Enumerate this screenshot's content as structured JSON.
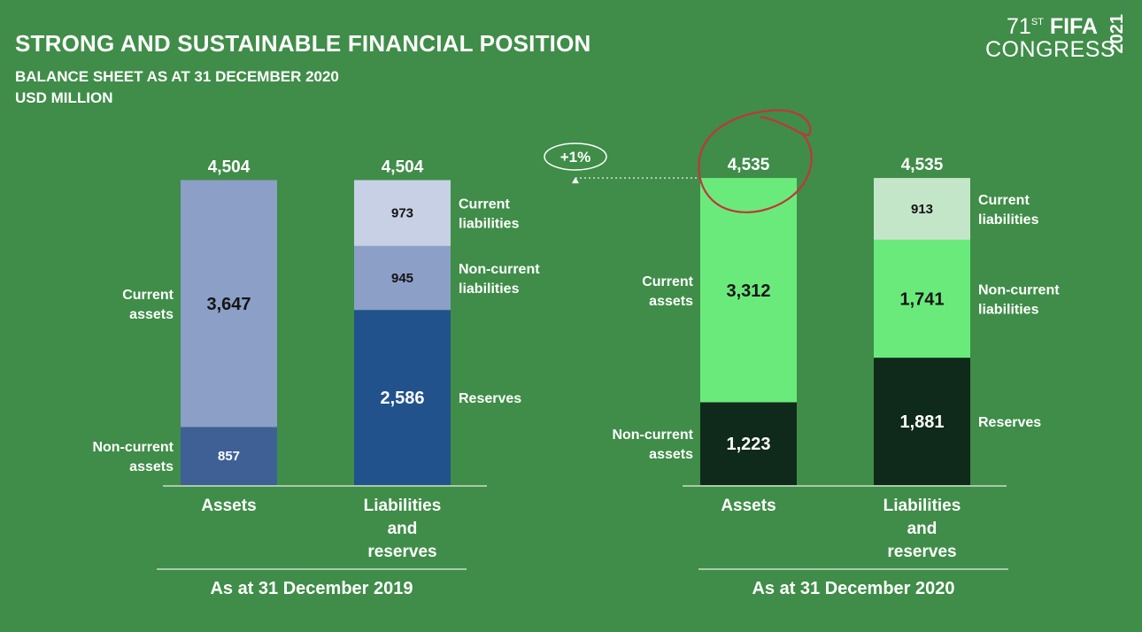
{
  "header": {
    "title": "STRONG AND SUSTAINABLE FINANCIAL POSITION",
    "subtitle": "BALANCE SHEET AS AT 31 DECEMBER 2020",
    "unit": "USD MILLION"
  },
  "logo": {
    "number": "71",
    "suffix": "ST",
    "brand": "FIFA",
    "word": "CONGRESS",
    "year": "2021"
  },
  "change_badge": "+1%",
  "colors": {
    "background": "#3f8d48",
    "c2019_current_assets": "#8c9fc6",
    "c2019_noncurrent_assets": "#3f6095",
    "c2019_current_liabilities": "#c7d0e4",
    "c2019_noncurrent_liabilities": "#8c9fc6",
    "c2019_reserves": "#21528c",
    "c2020_current_assets": "#6bea7c",
    "c2020_noncurrent_assets": "#0f2a1a",
    "c2020_current_liabilities": "#c3e6c8",
    "c2020_noncurrent_liabilities": "#6bea7c",
    "c2020_reserves": "#0f2a1a",
    "annotation": "#c0363a"
  },
  "chart_data": {
    "type": "bar",
    "stacked": true,
    "groups": [
      {
        "label": "As at 31 December 2019",
        "bars": [
          {
            "category": "Assets",
            "total": 4504,
            "total_label": "4,504",
            "segments": [
              {
                "name": "Non-current assets",
                "value": 857,
                "label": "857",
                "color_key": "c2019_noncurrent_assets",
                "dark_text": false,
                "label_side": "left"
              },
              {
                "name": "Current assets",
                "value": 3647,
                "label": "3,647",
                "color_key": "c2019_current_assets",
                "dark_text": true,
                "label_side": "left"
              }
            ]
          },
          {
            "category": "Liabilities and reserves",
            "total": 4504,
            "total_label": "4,504",
            "segments": [
              {
                "name": "Reserves",
                "value": 2586,
                "label": "2,586",
                "color_key": "c2019_reserves",
                "dark_text": false,
                "label_side": "right"
              },
              {
                "name": "Non-current liabilities",
                "value": 945,
                "label": "945",
                "color_key": "c2019_noncurrent_liabilities",
                "dark_text": true,
                "label_side": "right"
              },
              {
                "name": "Current liabilities",
                "value": 973,
                "label": "973",
                "color_key": "c2019_current_liabilities",
                "dark_text": true,
                "label_side": "right"
              }
            ]
          }
        ]
      },
      {
        "label": "As at 31 December 2020",
        "bars": [
          {
            "category": "Assets",
            "total": 4535,
            "total_label": "4,535",
            "segments": [
              {
                "name": "Non-current assets",
                "value": 1223,
                "label": "1,223",
                "color_key": "c2020_noncurrent_assets",
                "dark_text": false,
                "label_side": "left"
              },
              {
                "name": "Current assets",
                "value": 3312,
                "label": "3,312",
                "color_key": "c2020_current_assets",
                "dark_text": true,
                "label_side": "left"
              }
            ]
          },
          {
            "category": "Liabilities and reserves",
            "total": 4535,
            "total_label": "4,535",
            "segments": [
              {
                "name": "Reserves",
                "value": 1881,
                "label": "1,881",
                "color_key": "c2020_reserves",
                "dark_text": false,
                "label_side": "right"
              },
              {
                "name": "Non-current liabilities",
                "value": 1741,
                "label": "1,741",
                "color_key": "c2020_noncurrent_liabilities",
                "dark_text": true,
                "label_side": "right"
              },
              {
                "name": "Current liabilities",
                "value": 913,
                "label": "913",
                "color_key": "c2020_current_liabilities",
                "dark_text": true,
                "label_side": "right"
              }
            ]
          }
        ]
      }
    ],
    "segment_labels": {
      "Current assets": [
        "Current",
        "assets"
      ],
      "Non-current assets": [
        "Non-current",
        "assets"
      ],
      "Current liabilities": [
        "Current",
        "liabilities"
      ],
      "Non-current liabilities": [
        "Non-current",
        "liabilities"
      ],
      "Reserves": [
        "Reserves"
      ]
    },
    "category_labels": {
      "Assets": [
        "Assets"
      ],
      "Liabilities and reserves": [
        "Liabilities",
        "and",
        "reserves"
      ]
    }
  }
}
